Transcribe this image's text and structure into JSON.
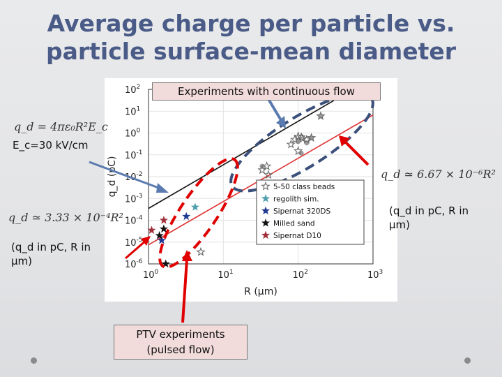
{
  "slide": {
    "title_line1": "Average charge per particle vs.",
    "title_line2": "particle surface-mean diameter",
    "callout_top": "Experiments with continuous flow",
    "callout_bottom_line1": "PTV experiments",
    "callout_bottom_line2": "(pulsed flow)",
    "formula_field": "q_d = 4πε₀R²E_c",
    "field_value": "E_c=30 kV/cm",
    "formula_right": "q_d ≃ 6.67 × 10⁻⁶R²",
    "formula_left": "q_d ≃ 3.33 × 10⁻⁴R²",
    "units_note_right_line1": "(q_d in pC, R in",
    "units_note_right_line2": "μm)",
    "units_note_left_line1": "(q_d in pC, R in",
    "units_note_left_line2": "μm)"
  },
  "colors": {
    "title": "#4a5b87",
    "black_line": "#111111",
    "red_line": "#e03030",
    "beads": "#6a6a6a",
    "regolith": "#4f9fb0",
    "sipernat320": "#1f3a93",
    "milled_sand": "#111111",
    "sipernat_d10": "#a0303a",
    "arrow_blue": "#5a7bb0",
    "arrow_red": "#e00000"
  },
  "chart_data": {
    "type": "scatter",
    "xlabel": "R (μm)",
    "ylabel": "q_d (pC)",
    "xscale": "log",
    "yscale": "log",
    "xlim": [
      1,
      1000
    ],
    "ylim": [
      1e-06,
      100
    ],
    "xticks": [
      {
        "v": 1,
        "b": "10",
        "e": "0"
      },
      {
        "v": 10,
        "b": "10",
        "e": "1"
      },
      {
        "v": 100,
        "b": "10",
        "e": "2"
      },
      {
        "v": 1000,
        "b": "10",
        "e": "3"
      }
    ],
    "yticks": [
      {
        "v": 100,
        "b": "10",
        "e": "2"
      },
      {
        "v": 10,
        "b": "10",
        "e": "1"
      },
      {
        "v": 1,
        "b": "10",
        "e": "0"
      },
      {
        "v": 0.1,
        "b": "10",
        "e": "-1"
      },
      {
        "v": 0.01,
        "b": "10",
        "e": "-2"
      },
      {
        "v": 0.001,
        "b": "10",
        "e": "-3"
      },
      {
        "v": 0.0001,
        "b": "10",
        "e": "-4"
      },
      {
        "v": 1e-05,
        "b": "10",
        "e": "-5"
      },
      {
        "v": 1e-06,
        "b": "10",
        "e": "-6"
      }
    ],
    "grid": true,
    "legend_position": "inside-right",
    "lines": [
      {
        "color_key": "black_line",
        "x": [
          1,
          300
        ],
        "y": [
          0.00035,
          31
        ]
      },
      {
        "color_key": "red_line",
        "x": [
          1,
          1000
        ],
        "y": [
          7.5e-06,
          6.7
        ]
      }
    ],
    "series": [
      {
        "name": "5-50 class beads",
        "marker": "star-open",
        "color_key": "beads",
        "x": [
          5,
          33,
          38,
          40,
          80,
          90,
          100,
          100,
          110,
          115,
          130,
          150,
          200
        ],
        "y": [
          3.5e-06,
          0.02,
          0.03,
          0.012,
          0.3,
          0.5,
          0.7,
          0.15,
          0.65,
          0.55,
          0.5,
          0.6,
          6
        ]
      },
      {
        "name": "regolith sim.",
        "marker": "star",
        "color_key": "regolith",
        "x": [
          4.2
        ],
        "y": [
          0.0004
        ]
      },
      {
        "name": "Sipernat 320DS",
        "marker": "star",
        "color_key": "sipernat320",
        "x": [
          1.5,
          3.2
        ],
        "y": [
          1.2e-05,
          0.00015
        ]
      },
      {
        "name": "Milled sand",
        "marker": "star",
        "color_key": "milled_sand",
        "x": [
          1.4,
          1.6,
          1.7
        ],
        "y": [
          2e-05,
          4e-05,
          1e-06
        ]
      },
      {
        "name": "Sipernat D10",
        "marker": "star",
        "color_key": "sipernat_d10",
        "x": [
          1.1,
          1.6
        ],
        "y": [
          3.5e-05,
          0.0001
        ]
      }
    ],
    "gray_points": {
      "x": [
        33,
        100,
        110,
        130,
        150,
        200
      ],
      "y": [
        0.03,
        0.4,
        0.12,
        0.35,
        0.6,
        6
      ]
    }
  }
}
